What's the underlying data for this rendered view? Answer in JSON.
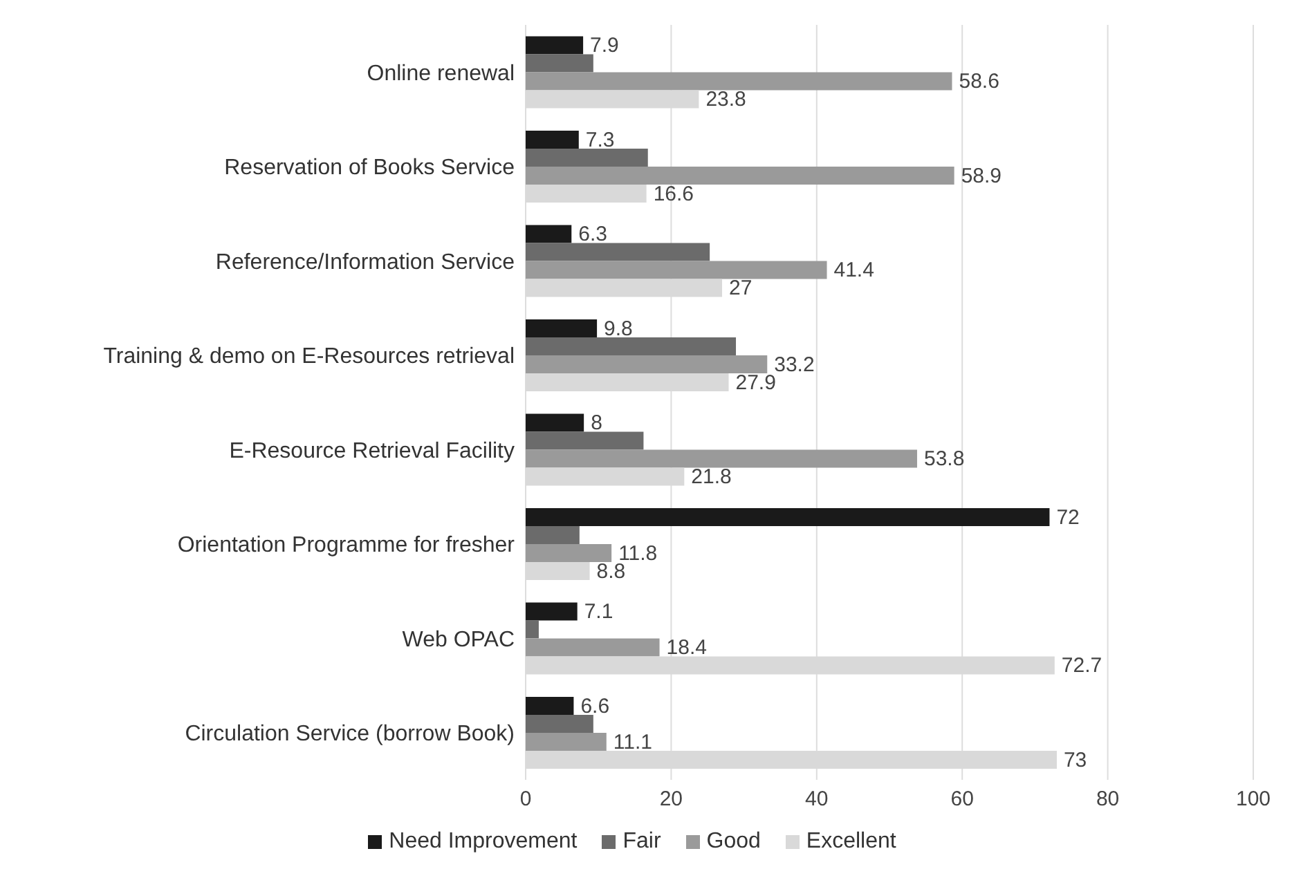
{
  "chart_data": {
    "type": "bar",
    "orientation": "horizontal",
    "categories": [
      "Online renewal",
      "Reservation of Books Service",
      "Reference/Information Service",
      "Training & demo on E-Resources retrieval",
      "E-Resource Retrieval Facility",
      "Orientation Programme for fresher",
      "Web OPAC",
      "Circulation Service (borrow Book)"
    ],
    "series": [
      {
        "name": "Need Improvement",
        "color": "#1a1a1a",
        "values": [
          7.9,
          7.3,
          6.3,
          9.8,
          8,
          72,
          7.1,
          6.6
        ],
        "value_labels": [
          "7.9",
          "7.3",
          "6.3",
          "9.8",
          "8",
          "72",
          "7.1",
          "6.6"
        ]
      },
      {
        "name": "Fair",
        "color": "#6b6b6b",
        "values": [
          9.3,
          16.8,
          25.3,
          28.9,
          16.2,
          7.4,
          1.8,
          9.3
        ],
        "value_labels": [
          null,
          null,
          null,
          null,
          null,
          null,
          null,
          null
        ]
      },
      {
        "name": "Good",
        "color": "#9a9a9a",
        "values": [
          58.6,
          58.9,
          41.4,
          33.2,
          53.8,
          11.8,
          18.4,
          11.1
        ],
        "value_labels": [
          "58.6",
          "58.9",
          "41.4",
          "33.2",
          "53.8",
          "11.8",
          "18.4",
          "11.1"
        ]
      },
      {
        "name": "Excellent",
        "color": "#d9d9d9",
        "values": [
          23.8,
          16.6,
          27,
          27.9,
          21.8,
          8.8,
          72.7,
          73
        ],
        "value_labels": [
          "23.8",
          "16.6",
          "27",
          "27.9",
          "21.8",
          "8.8",
          "72.7",
          "73"
        ]
      }
    ],
    "xlim": [
      0,
      100
    ],
    "xticks": [
      0,
      20,
      40,
      60,
      80,
      100
    ],
    "grid": "x",
    "legend": "bottom"
  }
}
